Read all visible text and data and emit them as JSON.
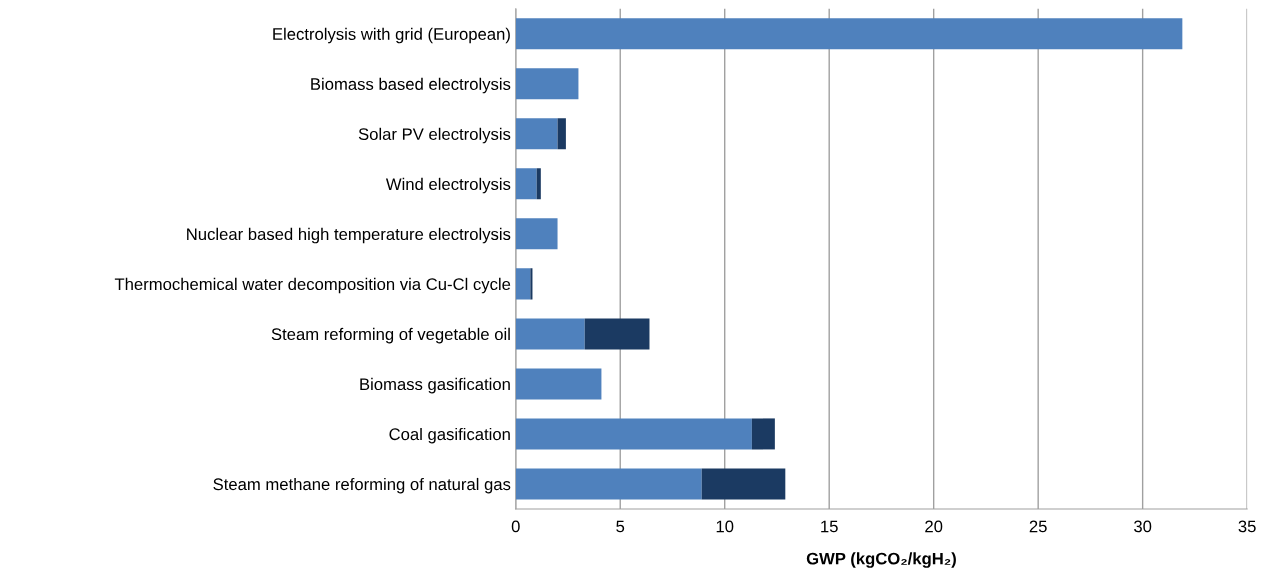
{
  "chart_data": {
    "type": "bar",
    "orientation": "horizontal",
    "stacked": true,
    "categories": [
      "Electrolysis with grid (European)",
      "Biomass based electrolysis",
      "Solar PV electrolysis",
      "Wind electrolysis",
      "Nuclear based high temperature electrolysis",
      "Thermochemical water decomposition via Cu-Cl cycle",
      "Steam reforming of vegetable oil",
      "Biomass gasification",
      "Coal gasification",
      "Steam methane reforming of natural gas"
    ],
    "series": [
      {
        "color": "#4f81bd",
        "values": [
          31.9,
          3.0,
          2.0,
          1.0,
          2.0,
          0.7,
          3.3,
          4.1,
          11.3,
          8.9
        ]
      },
      {
        "color": "#1b3a62",
        "values": [
          null,
          null,
          0.4,
          0.2,
          null,
          0.1,
          3.1,
          null,
          1.1,
          4.0
        ]
      }
    ],
    "xlabel": "GWP (kgCO₂/kgH₂)",
    "xlim": [
      0,
      35
    ],
    "xticks": [
      0,
      5,
      10,
      15,
      20,
      25,
      30,
      35
    ],
    "grid": "x",
    "legend": false
  }
}
